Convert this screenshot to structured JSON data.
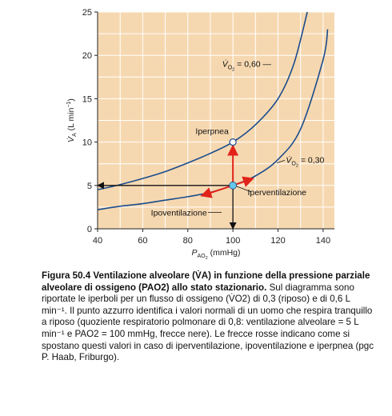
{
  "chart_data": {
    "type": "line",
    "title": "",
    "xlabel": "P_AO2 (mmHg)",
    "xlabel_parts": {
      "main": "P",
      "sub": "AO",
      "subsub": "2",
      "unit": " (mmHg)"
    },
    "ylabel": "V̇A (L min⁻¹)",
    "ylabel_parts": {
      "main": "V̇",
      "sub": "A",
      "unit": " (L min",
      "sup": "−1",
      "close": ")"
    },
    "xlim": [
      40,
      145
    ],
    "ylim": [
      0,
      25
    ],
    "xticks": [
      "40",
      "60",
      "80",
      "100",
      "120",
      "140"
    ],
    "yticks": [
      "0",
      "5",
      "10",
      "15",
      "20",
      "25"
    ],
    "grid": true,
    "background_color": "#f6d8b0",
    "grid_color": "#ffffff",
    "curve_color": "#1b4c8c",
    "series": [
      {
        "name": "V̇O2 = 0,30",
        "label_parts": {
          "main": "V̇",
          "sub": "O",
          "subsub": "2",
          "rest": " = 0,30"
        },
        "points": [
          [
            40,
            2.2
          ],
          [
            50,
            2.6
          ],
          [
            60,
            2.9
          ],
          [
            70,
            3.3
          ],
          [
            80,
            3.7
          ],
          [
            90,
            4.2
          ],
          [
            100,
            5.0
          ],
          [
            110,
            6.1
          ],
          [
            120,
            8.0
          ],
          [
            130,
            11.5
          ],
          [
            140,
            19.5
          ],
          [
            142,
            23.0
          ]
        ]
      },
      {
        "name": "V̇O2 = 0,60",
        "label_parts": {
          "main": "V̇",
          "sub": "O",
          "subsub": "2",
          "rest": " = 0,60 —"
        },
        "points": [
          [
            40,
            4.5
          ],
          [
            50,
            5.1
          ],
          [
            60,
            5.8
          ],
          [
            70,
            6.6
          ],
          [
            80,
            7.6
          ],
          [
            90,
            8.7
          ],
          [
            100,
            10.0
          ],
          [
            110,
            12.0
          ],
          [
            120,
            15.0
          ],
          [
            127,
            19.0
          ],
          [
            133,
            25.0
          ]
        ]
      }
    ],
    "reference_point": {
      "x": 100,
      "y": 5,
      "color": "#66c7e9"
    },
    "iperpnea_point": {
      "x": 100,
      "y": 10
    },
    "arrows": {
      "black": [
        {
          "from": [
            100,
            5
          ],
          "to": [
            40,
            5
          ]
        },
        {
          "from": [
            100,
            5
          ],
          "to": [
            100,
            0
          ]
        }
      ],
      "red": [
        {
          "from": [
            100,
            5
          ],
          "to": [
            100,
            9.6
          ]
        },
        {
          "from": [
            100,
            5
          ],
          "to": [
            109,
            5.8
          ]
        },
        {
          "from": [
            100,
            5
          ],
          "to": [
            86,
            3.8
          ]
        }
      ]
    },
    "annotations": {
      "iperpnea": "Iperpnea",
      "iperventilazione": "Iperventilazione",
      "ipoventilazione": "Ipoventilazione"
    }
  },
  "caption": {
    "lead": "Figura 50.4  Ventilazione alveolare (V̇A) in funzione della pressione parziale alveolare di ossigeno (PAO2) allo stato stazionario.",
    "body": "Sul diagramma sono riportate le iperboli per un flusso di ossigeno (V̇O2) di 0,3 (riposo) e di 0,6 L min⁻¹. Il punto azzurro identifica i valori normali di un uomo che respira tranquillo a riposo (quoziente respiratorio polmonare di 0,8: ventilazione alveolare = 5 L min⁻¹ e PAO2 = 100 mmHg, frecce nere). Le frecce rosse indicano come si spostano questi valori in caso di iperventilazione, ipoventilazione e iperpnea (pgc P. Haab, Friburgo)."
  }
}
